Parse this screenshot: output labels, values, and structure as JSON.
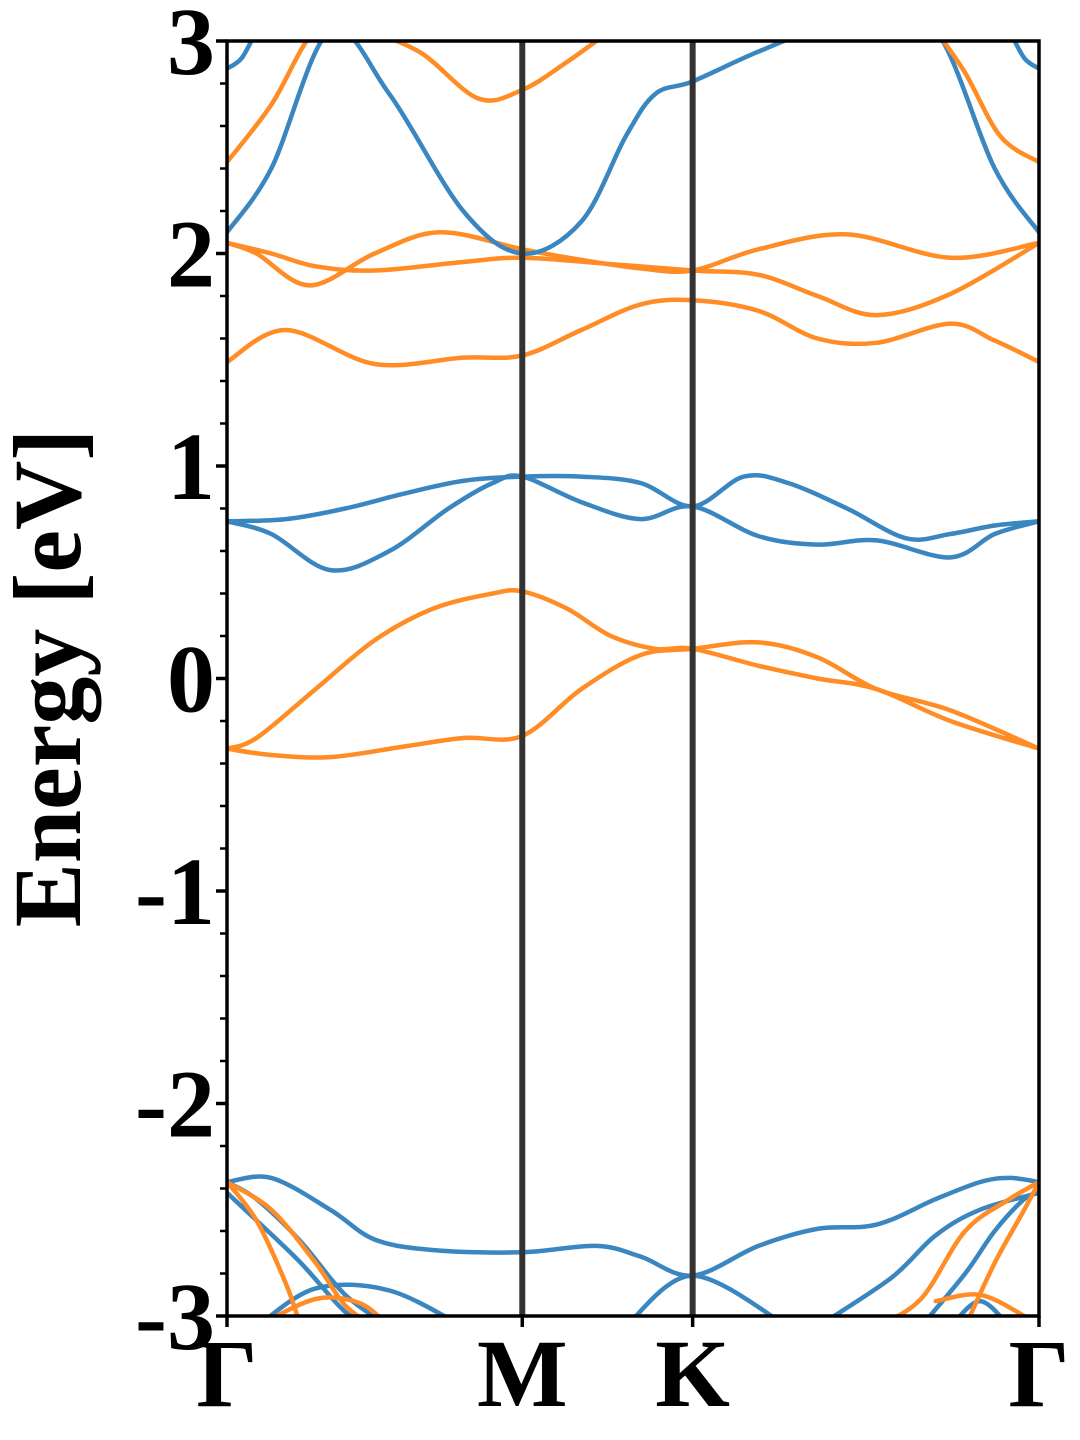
{
  "chart_data": {
    "type": "line",
    "title": "",
    "xlabel": "",
    "ylabel": "Energy [eV]",
    "ylim": [
      -3,
      3
    ],
    "xlim": [
      0,
      2.75
    ],
    "yticks": [
      {
        "value": 3,
        "label": "3"
      },
      {
        "value": 2,
        "label": "2"
      },
      {
        "value": 1,
        "label": "1"
      },
      {
        "value": 0,
        "label": "0"
      },
      {
        "value": -1,
        "label": "-1"
      },
      {
        "value": -2,
        "label": "-2"
      },
      {
        "value": -3,
        "label": "-3"
      }
    ],
    "yminor_step": 0.2,
    "kpoints": [
      {
        "x": 0,
        "label": "Γ"
      },
      {
        "x": 1.0,
        "label": "M"
      },
      {
        "x": 1.577,
        "label": "K"
      },
      {
        "x": 2.75,
        "label": "Γ"
      }
    ],
    "grid": false,
    "legend": "none",
    "colors": {
      "blue": "#3a86c0",
      "orange": "#ff8c24",
      "kline": "#333333",
      "axis": "#000000"
    },
    "series": [
      {
        "color": "orange",
        "x": [
          0,
          0.15,
          0.35,
          0.6,
          0.8,
          1.0,
          1.2,
          1.4,
          1.577,
          1.8,
          2.0,
          2.2,
          2.45,
          2.75
        ],
        "y": [
          -0.33,
          -0.36,
          -0.37,
          -0.32,
          -0.28,
          -0.27,
          -0.05,
          0.11,
          0.14,
          0.17,
          0.1,
          -0.05,
          -0.15,
          -0.33
        ]
      },
      {
        "color": "orange",
        "x": [
          0,
          0.1,
          0.3,
          0.5,
          0.7,
          0.9,
          1.0,
          1.15,
          1.3,
          1.45,
          1.577,
          1.8,
          2.0,
          2.2,
          2.45,
          2.75
        ],
        "y": [
          -0.33,
          -0.28,
          -0.05,
          0.18,
          0.33,
          0.4,
          0.41,
          0.33,
          0.2,
          0.14,
          0.14,
          0.06,
          0.0,
          -0.05,
          -0.2,
          -0.33
        ]
      },
      {
        "color": "blue",
        "x": [
          0,
          0.15,
          0.35,
          0.55,
          0.75,
          0.9,
          1.0,
          1.2,
          1.4,
          1.577,
          1.8,
          2.0,
          2.2,
          2.45,
          2.6,
          2.75
        ],
        "y": [
          0.74,
          0.68,
          0.51,
          0.6,
          0.8,
          0.92,
          0.95,
          0.83,
          0.75,
          0.81,
          0.67,
          0.63,
          0.65,
          0.57,
          0.68,
          0.74
        ]
      },
      {
        "color": "blue",
        "x": [
          0,
          0.2,
          0.4,
          0.6,
          0.8,
          1.0,
          1.2,
          1.4,
          1.577,
          1.75,
          1.9,
          2.1,
          2.3,
          2.45,
          2.6,
          2.75
        ],
        "y": [
          0.74,
          0.75,
          0.8,
          0.87,
          0.93,
          0.95,
          0.95,
          0.92,
          0.81,
          0.95,
          0.92,
          0.8,
          0.66,
          0.68,
          0.72,
          0.74
        ]
      },
      {
        "color": "orange",
        "x": [
          0,
          0.2,
          0.5,
          0.8,
          1.0,
          1.2,
          1.4,
          1.577,
          1.8,
          2.0,
          2.2,
          2.45,
          2.6,
          2.75
        ],
        "y": [
          1.49,
          1.64,
          1.48,
          1.51,
          1.52,
          1.64,
          1.76,
          1.78,
          1.73,
          1.6,
          1.58,
          1.67,
          1.59,
          1.49
        ]
      },
      {
        "color": "orange",
        "x": [
          0,
          0.15,
          0.3,
          0.5,
          0.8,
          1.0,
          1.3,
          1.577,
          1.8,
          2.0,
          2.2,
          2.45,
          2.75
        ],
        "y": [
          2.05,
          2.0,
          1.94,
          1.92,
          1.96,
          1.98,
          1.95,
          1.92,
          1.9,
          1.8,
          1.71,
          1.81,
          2.05
        ]
      },
      {
        "color": "orange",
        "x": [
          0,
          0.1,
          0.28,
          0.5,
          0.72,
          1.0,
          1.2,
          1.4,
          1.577,
          1.8,
          2.1,
          2.45,
          2.75
        ],
        "y": [
          2.05,
          2.0,
          1.85,
          2.0,
          2.1,
          2.02,
          1.97,
          1.93,
          1.92,
          2.02,
          2.09,
          1.98,
          2.05
        ]
      },
      {
        "color": "blue",
        "x": [
          0,
          0.15,
          0.35,
          0.55,
          0.8,
          1.0,
          1.2,
          1.35,
          1.45,
          1.577,
          1.8,
          2.0,
          2.2,
          2.4,
          2.6,
          2.75
        ],
        "y": [
          2.1,
          2.4,
          3.05,
          2.75,
          2.2,
          2.0,
          2.15,
          2.55,
          2.75,
          2.81,
          2.95,
          3.05,
          3.05,
          3.05,
          2.4,
          2.1
        ]
      },
      {
        "color": "orange",
        "x": [
          0,
          0.15,
          0.3,
          0.45,
          0.65,
          0.85,
          1.0,
          1.15,
          1.3
        ],
        "y": [
          2.43,
          2.7,
          3.05,
          3.05,
          2.95,
          2.73,
          2.77,
          2.9,
          3.05
        ]
      },
      {
        "color": "orange",
        "x": [
          2.4,
          2.5,
          2.62,
          2.75
        ],
        "y": [
          3.05,
          2.85,
          2.55,
          2.43
        ]
      },
      {
        "color": "blue",
        "x": [
          0,
          0.05,
          0.1
        ],
        "y": [
          2.87,
          2.92,
          3.05
        ]
      },
      {
        "color": "blue",
        "x": [
          2.65,
          2.7,
          2.75
        ],
        "y": [
          3.05,
          2.92,
          2.87
        ]
      },
      {
        "color": "blue",
        "x": [
          0,
          0.15,
          0.35,
          0.5,
          0.7,
          1.0,
          1.25,
          1.4,
          1.577,
          1.8,
          2.0,
          2.2,
          2.4,
          2.55,
          2.65,
          2.75
        ],
        "y": [
          -2.37,
          -2.35,
          -2.5,
          -2.64,
          -2.69,
          -2.7,
          -2.67,
          -2.72,
          -2.81,
          -2.67,
          -2.59,
          -2.57,
          -2.45,
          -2.37,
          -2.35,
          -2.37
        ]
      },
      {
        "color": "blue",
        "x": [
          0,
          0.1,
          0.25,
          0.4,
          0.55
        ],
        "y": [
          -2.37,
          -2.45,
          -2.65,
          -2.9,
          -3.05
        ]
      },
      {
        "color": "blue",
        "x": [
          0,
          0.1,
          0.25,
          0.4,
          0.5
        ],
        "y": [
          -2.42,
          -2.55,
          -2.75,
          -2.98,
          -3.05
        ]
      },
      {
        "color": "blue",
        "x": [
          0.1,
          0.3,
          0.55,
          0.8
        ],
        "y": [
          -3.05,
          -2.87,
          -2.88,
          -3.05
        ]
      },
      {
        "color": "blue",
        "x": [
          1.35,
          1.577,
          1.9
        ],
        "y": [
          -3.05,
          -2.81,
          -3.05
        ]
      },
      {
        "color": "blue",
        "x": [
          2.0,
          2.25,
          2.4,
          2.55,
          2.75
        ],
        "y": [
          -3.05,
          -2.82,
          -2.62,
          -2.5,
          -2.42
        ]
      },
      {
        "color": "blue",
        "x": [
          2.35,
          2.5,
          2.6,
          2.7,
          2.75
        ],
        "y": [
          -3.05,
          -2.8,
          -2.6,
          -2.45,
          -2.42
        ]
      },
      {
        "color": "blue",
        "x": [
          2.45,
          2.55,
          2.65
        ],
        "y": [
          -3.05,
          -2.93,
          -3.05
        ]
      },
      {
        "color": "orange",
        "x": [
          0,
          0.1,
          0.2,
          0.25
        ],
        "y": [
          -2.37,
          -2.55,
          -2.85,
          -3.05
        ]
      },
      {
        "color": "orange",
        "x": [
          0,
          0.15,
          0.3,
          0.4,
          0.5
        ],
        "y": [
          -2.37,
          -2.5,
          -2.75,
          -2.95,
          -3.05
        ]
      },
      {
        "color": "orange",
        "x": [
          0.1,
          0.3,
          0.45,
          0.55
        ],
        "y": [
          -3.05,
          -2.92,
          -2.94,
          -3.05
        ]
      },
      {
        "color": "orange",
        "x": [
          2.2,
          2.35,
          2.5,
          2.65,
          2.75
        ],
        "y": [
          -3.05,
          -2.92,
          -2.6,
          -2.45,
          -2.37
        ]
      },
      {
        "color": "orange",
        "x": [
          2.5,
          2.6,
          2.7,
          2.75
        ],
        "y": [
          -3.05,
          -2.75,
          -2.5,
          -2.37
        ]
      },
      {
        "color": "orange",
        "x": [
          2.4,
          2.55,
          2.7,
          2.75
        ],
        "y": [
          -2.93,
          -2.9,
          -3.0,
          -3.05
        ]
      }
    ]
  }
}
